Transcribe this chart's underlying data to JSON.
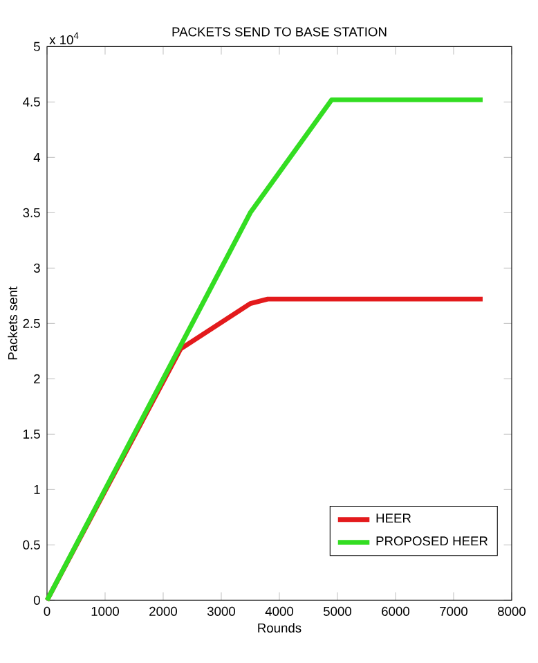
{
  "chart_data": {
    "type": "line",
    "title": "PACKETS SEND TO BASE STATION",
    "xlabel": "Rounds",
    "ylabel": "Packets sent",
    "annotations": [
      "x 10$^{4}$"
    ],
    "series": [
      {
        "name": "HEER",
        "color": "#e31a1c",
        "x": [
          0,
          2300,
          3500,
          3800,
          7500
        ],
        "values": [
          0,
          2.27,
          2.68,
          2.72,
          2.72
        ]
      },
      {
        "name": "PROPOSED HEER",
        "color": "#33dd22",
        "x": [
          0,
          3500,
          4900,
          7500
        ],
        "values": [
          0,
          3.5,
          4.52,
          4.52
        ]
      }
    ],
    "xlim": [
      0,
      8000
    ],
    "xticks": [
      0,
      1000,
      2000,
      3000,
      4000,
      5000,
      6000,
      7000,
      8000
    ],
    "ylim": [
      0,
      5
    ],
    "yticks": [
      0,
      0.5,
      1,
      1.5,
      2,
      2.5,
      3,
      3.5,
      4,
      4.5,
      5
    ],
    "legend": "bottom right",
    "line_style": "solid",
    "marker": "none"
  }
}
